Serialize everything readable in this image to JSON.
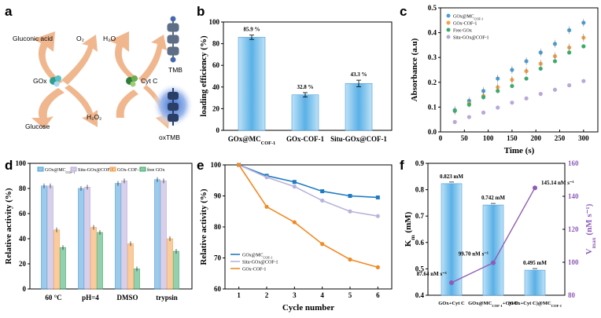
{
  "panel_labels": [
    "a",
    "b",
    "c",
    "d",
    "e",
    "f"
  ],
  "scheme": {
    "labels": [
      "Gluconic acid",
      "O₂",
      "H₂O",
      "TMB",
      "GOx",
      "Cyt C",
      "H₂O₂",
      "Glucose",
      "oxTMB"
    ],
    "colors": {
      "arrow": "#f0b78f",
      "tmb_dark": "#4a6fa0",
      "tmb_glow": "#1e4ea8"
    }
  },
  "colors": {
    "blue": "#4a9fd8",
    "purple": "#b8a8d8",
    "orange": "#f5a04a",
    "green": "#3daa6b",
    "line_blue": "#1f7bc0",
    "line_purple": "#b9b3db",
    "line_orange": "#f08a24",
    "vmax": "#8e5cb6"
  },
  "chart_data": [
    {
      "panel": "b",
      "type": "bar",
      "categories": [
        "GOx@MC_COF-1",
        "GOx-COF-1",
        "Situ-GOx@COF-1"
      ],
      "category_labels": [
        {
          "main": "GOx@MC",
          "sub": "COF-1"
        },
        {
          "main": "GOx-COF-1",
          "sub": ""
        },
        {
          "main": "Situ-GOx@COF-1",
          "sub": ""
        }
      ],
      "values": [
        85.9,
        32.8,
        43.3
      ],
      "errors": [
        2.0,
        2.0,
        3.0
      ],
      "data_labels": [
        "85.9 %",
        "32.8 %",
        "43.3 %"
      ],
      "ylabel": "loading efficiency (%)",
      "ylim": [
        0,
        100
      ],
      "yticks": [
        "0",
        "20",
        "40",
        "60",
        "80",
        "100"
      ]
    },
    {
      "panel": "c",
      "type": "scatter",
      "x": [
        30,
        60,
        90,
        120,
        150,
        180,
        210,
        240,
        270,
        300
      ],
      "series": [
        {
          "name": "GOx@MC",
          "name_sub": "COF-1",
          "values": [
            0.088,
            0.125,
            0.165,
            0.215,
            0.25,
            0.285,
            0.32,
            0.355,
            0.41,
            0.44
          ]
        },
        {
          "name": "GOx-COF-1",
          "name_sub": "",
          "values": [
            0.085,
            0.115,
            0.145,
            0.18,
            0.21,
            0.245,
            0.275,
            0.305,
            0.34,
            0.38
          ]
        },
        {
          "name": "Free GOx",
          "name_sub": "",
          "values": [
            0.085,
            0.11,
            0.14,
            0.165,
            0.185,
            0.215,
            0.255,
            0.285,
            0.32,
            0.345
          ]
        },
        {
          "name": "Situ-GOx@COF-1",
          "name_sub": "",
          "values": [
            0.04,
            0.06,
            0.078,
            0.098,
            0.118,
            0.135,
            0.153,
            0.17,
            0.188,
            0.205
          ]
        }
      ],
      "xlabel": "Time (s)",
      "ylabel": "Absorbance (a.u)",
      "xlim": [
        0,
        330
      ],
      "ylim": [
        0,
        0.5
      ],
      "xticks": [
        "0",
        "50",
        "100",
        "150",
        "200",
        "250",
        "300"
      ],
      "yticks": [
        "0.0",
        "0.1",
        "0.2",
        "0.3",
        "0.4",
        "0.5"
      ]
    },
    {
      "panel": "d",
      "type": "bar",
      "categories": [
        "60 °C",
        "pH=4",
        "DMSO",
        "trypsin"
      ],
      "series": [
        {
          "name": "GOx@MC",
          "name_sub": "COF-1",
          "values": [
            82,
            80,
            84,
            87
          ]
        },
        {
          "name": "Situ-GOx@COF-1",
          "name_sub": "",
          "values": [
            82,
            81,
            86,
            86
          ]
        },
        {
          "name": "GOx-COF-1",
          "name_sub": "",
          "values": [
            47,
            49,
            36,
            40
          ]
        },
        {
          "name": "free GOx",
          "name_sub": "",
          "values": [
            33,
            45,
            16,
            30
          ]
        }
      ],
      "ylabel": "Relative activity (%)",
      "ylim": [
        0,
        100
      ],
      "yticks": [
        "0",
        "20",
        "40",
        "60",
        "80",
        "100"
      ]
    },
    {
      "panel": "e",
      "type": "line",
      "x": [
        1,
        2,
        3,
        4,
        5,
        6
      ],
      "series": [
        {
          "name": "GOx@MC",
          "name_sub": "COF-1",
          "values": [
            100,
            96.5,
            94.5,
            91.5,
            90,
            89.5
          ]
        },
        {
          "name": "Situ-GOx@COF-1",
          "name_sub": "",
          "values": [
            100,
            96,
            93,
            88.5,
            85,
            83.5
          ]
        },
        {
          "name": "GOx-COF-1",
          "name_sub": "",
          "values": [
            100,
            86.5,
            81.5,
            74.5,
            69.5,
            67
          ]
        }
      ],
      "xlabel": "Cycle number",
      "ylabel": "Relative activity (%)",
      "xlim": [
        0.5,
        6.5
      ],
      "ylim": [
        60,
        100
      ],
      "xticks": [
        "1",
        "2",
        "3",
        "4",
        "5",
        "6"
      ],
      "yticks": [
        "60",
        "70",
        "80",
        "90",
        "100"
      ]
    },
    {
      "panel": "f",
      "type": "bar+line",
      "categories": [
        "GOx+Cyt C",
        "GOx@MC_COF-1+Cyt C",
        "(GOx+Cyt C)@MC_COF-1"
      ],
      "category_labels": [
        {
          "main": "GOx+Cyt C",
          "sub": ""
        },
        {
          "main": "GOx@MC",
          "sub": "COF-1",
          "tail": "+Cyt C"
        },
        {
          "main": "(GOx+Cyt C)@MC",
          "sub": "COF-1",
          "tail": ""
        }
      ],
      "km_values": [
        0.823,
        0.742,
        0.495
      ],
      "km_labels": [
        "0.823 mM",
        "0.742 mM",
        "0.495 mM"
      ],
      "vmax_values": [
        87.64,
        99.7,
        145.14
      ],
      "vmax_labels": [
        "87.64 nM s⁻¹",
        "99.70 nM s⁻¹",
        "145.14 nM s⁻¹"
      ],
      "ylabel_left": "K",
      "ylabel_left_sub": "m",
      "ylabel_left_unit": " (mM)",
      "ylabel_right": "V",
      "ylabel_right_sub": "max",
      "ylabel_right_unit": " (nM s⁻¹)",
      "ylim_left": [
        0.4,
        0.9
      ],
      "ylim_right": [
        80,
        160
      ],
      "yticks_left": [
        "0.4",
        "0.5",
        "0.6",
        "0.7",
        "0.8",
        "0.9"
      ],
      "yticks_right": [
        "80",
        "100",
        "120",
        "140",
        "160"
      ]
    }
  ]
}
